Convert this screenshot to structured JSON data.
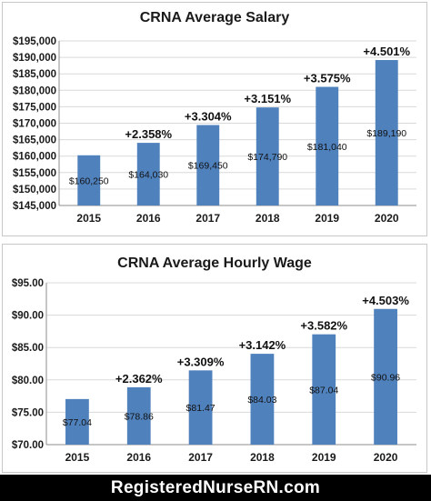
{
  "chart_data": [
    {
      "type": "bar",
      "title": "CRNA Average Salary",
      "categories": [
        "2015",
        "2016",
        "2017",
        "2018",
        "2019",
        "2020"
      ],
      "values": [
        160250,
        164030,
        169450,
        174790,
        181040,
        189190
      ],
      "value_labels": [
        "$160,250",
        "$164,030",
        "$169,450",
        "$174,790",
        "$181,040",
        "$189,190"
      ],
      "annotations": [
        "",
        "+2.358%",
        "+3.304%",
        "+3.151%",
        "+3.575%",
        "+4.501%"
      ],
      "ylim": [
        145000,
        195000
      ],
      "yticks": [
        145000,
        150000,
        155000,
        160000,
        165000,
        170000,
        175000,
        180000,
        185000,
        190000,
        195000
      ],
      "ytick_labels": [
        "$145,000",
        "$150,000",
        "$155,000",
        "$160,000",
        "$165,000",
        "$170,000",
        "$175,000",
        "$180,000",
        "$185,000",
        "$190,000",
        "$195,000"
      ],
      "xlabel": "",
      "ylabel": "",
      "grid": true,
      "bar_color": "#4f81bd",
      "grid_color": "#d9d9d9"
    },
    {
      "type": "bar",
      "title": "CRNA Average Hourly Wage",
      "categories": [
        "2015",
        "2016",
        "2017",
        "2018",
        "2019",
        "2020"
      ],
      "values": [
        77.04,
        78.86,
        81.47,
        84.03,
        87.04,
        90.96
      ],
      "value_labels": [
        "$77.04",
        "$78.86",
        "$81.47",
        "$84.03",
        "$87.04",
        "$90.96"
      ],
      "annotations": [
        "",
        "+2.362%",
        "+3.309%",
        "+3.142%",
        "+3.582%",
        "+4.503%"
      ],
      "ylim": [
        70,
        95
      ],
      "yticks": [
        70,
        75,
        80,
        85,
        90,
        95
      ],
      "ytick_labels": [
        "$70.00",
        "$75.00",
        "$80.00",
        "$85.00",
        "$90.00",
        "$95.00"
      ],
      "xlabel": "",
      "ylabel": "",
      "grid": true,
      "bar_color": "#4f81bd",
      "grid_color": "#d9d9d9"
    }
  ],
  "footer": {
    "text": "RegisteredNurseRN.com"
  }
}
